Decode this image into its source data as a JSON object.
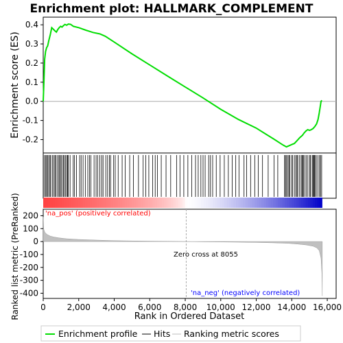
{
  "chart_data": [
    {
      "type": "line",
      "title": "Enrichment plot: HALLMARK_COMPLEMENT",
      "ylabel": "Enrichment score (ES)",
      "xlim": [
        0,
        16500
      ],
      "ylim": [
        -0.27,
        0.44
      ],
      "yticks": [
        -0.2,
        -0.1,
        0.0,
        0.1,
        0.2,
        0.3,
        0.4
      ],
      "ytick_labels": [
        "-0.2",
        "-0.1",
        "0.0",
        "0.1",
        "0.2",
        "0.3",
        "0.4"
      ],
      "grid": false,
      "series": [
        {
          "name": "Enrichment profile",
          "color": "#00dd00",
          "x": [
            0,
            40,
            80,
            130,
            190,
            250,
            320,
            400,
            480,
            560,
            640,
            740,
            820,
            900,
            980,
            1060,
            1140,
            1220,
            1320,
            1420,
            1550,
            1700,
            2000,
            2400,
            2800,
            3200,
            3500,
            4000,
            5000,
            6000,
            7000,
            8000,
            9000,
            10000,
            11000,
            12000,
            13000,
            13500,
            13700,
            13850,
            14000,
            14150,
            14300,
            14450,
            14600,
            14700,
            14800,
            14900,
            15000,
            15100,
            15200,
            15300,
            15400,
            15480,
            15550,
            15600,
            15650,
            15700
          ],
          "y": [
            0.0,
            0.1,
            0.22,
            0.26,
            0.28,
            0.29,
            0.32,
            0.35,
            0.385,
            0.378,
            0.37,
            0.362,
            0.375,
            0.385,
            0.392,
            0.388,
            0.396,
            0.402,
            0.398,
            0.404,
            0.402,
            0.392,
            0.385,
            0.372,
            0.36,
            0.352,
            0.34,
            0.31,
            0.248,
            0.19,
            0.132,
            0.075,
            0.018,
            -0.042,
            -0.095,
            -0.14,
            -0.198,
            -0.228,
            -0.238,
            -0.232,
            -0.226,
            -0.22,
            -0.205,
            -0.19,
            -0.178,
            -0.165,
            -0.155,
            -0.148,
            -0.152,
            -0.148,
            -0.142,
            -0.132,
            -0.118,
            -0.095,
            -0.06,
            -0.03,
            0.0,
            0.005
          ]
        }
      ]
    },
    {
      "type": "scatter",
      "name": "Hits",
      "xlim": [
        0,
        16500
      ]
    },
    {
      "type": "area",
      "xlabel": "Rank in Ordered Dataset",
      "ylabel": "Ranked list metric (PreRanked)",
      "xlim": [
        0,
        16500
      ],
      "ylim": [
        -440,
        250
      ],
      "xticks": [
        0,
        2000,
        4000,
        6000,
        8000,
        10000,
        12000,
        14000,
        16000
      ],
      "xtick_labels": [
        "0",
        "2,000",
        "4,000",
        "6,000",
        "8,000",
        "10,000",
        "12,000",
        "14,000",
        "16,000"
      ],
      "yticks": [
        -400,
        -300,
        -200,
        -100,
        0,
        100,
        200
      ],
      "ytick_labels": [
        "-400",
        "-300",
        "-200",
        "-100",
        "0",
        "100",
        "200"
      ],
      "zero_cross": 8055,
      "series": [
        {
          "name": "Ranking metric scores",
          "color": "#bbbbbb",
          "x": [
            0,
            30,
            80,
            150,
            250,
            400,
            600,
            900,
            1300,
            2000,
            3000,
            4000,
            5000,
            6000,
            7000,
            8055,
            9000,
            10000,
            11000,
            12000,
            13000,
            13800,
            14300,
            14800,
            15200,
            15400,
            15550,
            15650,
            15700,
            15720
          ],
          "y": [
            190,
            95,
            75,
            62,
            52,
            42,
            35,
            28,
            22,
            16,
            11,
            7,
            5,
            3,
            2,
            0,
            -2,
            -3,
            -5,
            -7,
            -10,
            -14,
            -19,
            -26,
            -36,
            -48,
            -70,
            -130,
            -250,
            -420
          ]
        }
      ]
    }
  ],
  "annotations": {
    "pos_label": "'na_pos' (positively correlated)",
    "neg_label": "'na_neg' (negatively correlated)",
    "zero_cross_label": "Zero cross at 8055"
  },
  "legend": {
    "placement": "bottom",
    "items": [
      {
        "label": "Enrichment profile",
        "color": "#00dd00",
        "style": "line"
      },
      {
        "label": "Hits",
        "color": "#000000",
        "style": "line"
      },
      {
        "label": "Ranking metric scores",
        "color": "#bbbbbb",
        "style": "line"
      }
    ]
  },
  "colors": {
    "es_line": "#00dd00",
    "pos_bar": "#ff0000",
    "neg_bar": "#0000ff",
    "metric_fill": "#c0c0c0",
    "neg_label": "#0000ff",
    "pos_label": "#ff0000"
  }
}
